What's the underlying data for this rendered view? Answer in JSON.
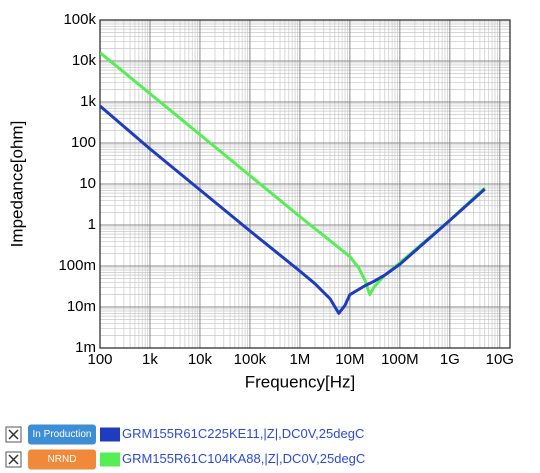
{
  "chart_data": {
    "type": "line",
    "x_label": "Frequency[Hz]",
    "y_label": "Impedance[ohm]",
    "log_x": true,
    "log_y": true,
    "grid": true,
    "xlim": [
      100,
      16000000000
    ],
    "ylim": [
      0.001,
      100000
    ],
    "xticks": [
      100,
      {
        "value": 1000,
        "label": "1k"
      },
      {
        "value": 10000,
        "label": "10k"
      },
      {
        "value": 100000,
        "label": "100k"
      },
      {
        "value": 1000000,
        "label": "1M"
      },
      {
        "value": 10000000,
        "label": "10M"
      },
      {
        "value": 100000000,
        "label": "100M"
      },
      {
        "value": 1000000000,
        "label": "1G"
      },
      {
        "value": 10000000000,
        "label": "10G"
      }
    ],
    "yticks": [
      {
        "value": 0.001,
        "label": "1m"
      },
      {
        "value": 0.01,
        "label": "10m"
      },
      {
        "value": 0.1,
        "label": "100m"
      },
      1,
      10,
      100,
      {
        "value": 1000,
        "label": "1k"
      },
      {
        "value": 10000,
        "label": "10k"
      },
      {
        "value": 100000,
        "label": "100k"
      }
    ],
    "series": [
      {
        "name": "GRM155R61C225KE11,|Z|,DC0V,25degC",
        "status": "In Production",
        "status_color": "#3d8ed4",
        "color": "#1f3cbf",
        "x": [
          100,
          1000,
          10000,
          100000,
          1000000,
          2000000,
          4000000,
          6000000,
          8000000,
          10000000,
          20000000,
          30000000,
          50000000,
          100000000,
          1000000000,
          5000000000
        ],
        "values": [
          800,
          72,
          7.2,
          0.72,
          0.075,
          0.037,
          0.016,
          0.007,
          0.011,
          0.02,
          0.033,
          0.042,
          0.06,
          0.11,
          1.3,
          7.5
        ]
      },
      {
        "name": "GRM155R61C104KA88,|Z|,DC0V,25degC",
        "status": "NRND",
        "status_color": "#f08a3a",
        "color": "#55ee55",
        "x": [
          100,
          1000,
          10000,
          100000,
          1000000,
          10000000,
          15000000,
          20000000,
          25000000,
          30000000,
          50000000,
          100000000,
          1000000000,
          5000000000
        ],
        "values": [
          16000,
          1600,
          160,
          16,
          1.6,
          0.17,
          0.09,
          0.045,
          0.02,
          0.03,
          0.06,
          0.12,
          1.3,
          8
        ]
      }
    ]
  }
}
